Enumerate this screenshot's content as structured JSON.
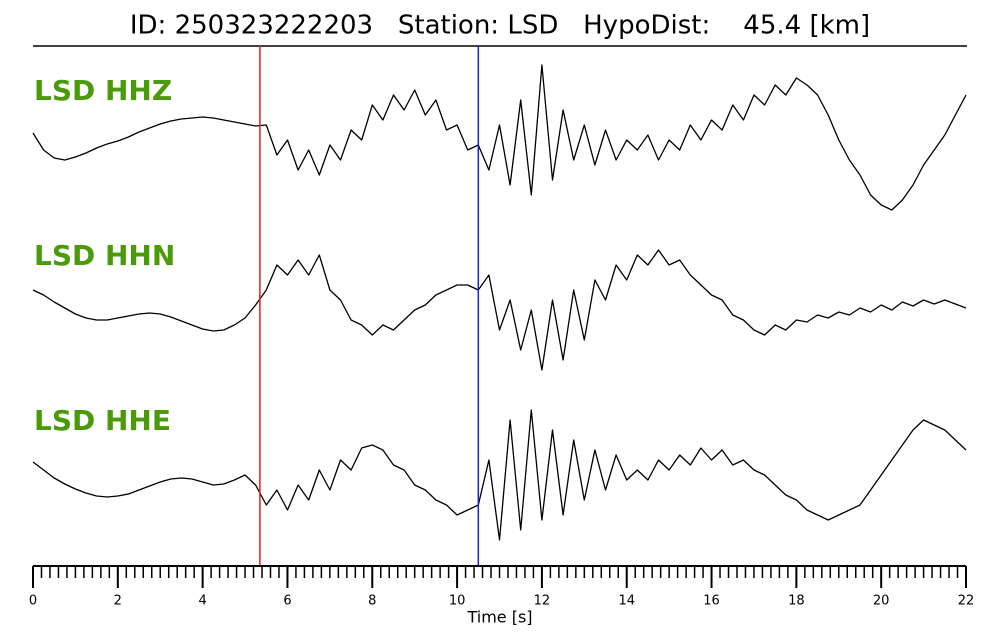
{
  "chart_data": {
    "type": "line",
    "title": "ID: 250323222203   Station: LSD   HypoDist:    45.4 [km]",
    "xlabel": "Time [s]",
    "xlim": [
      0,
      22
    ],
    "xticks": [
      0,
      2,
      4,
      6,
      8,
      10,
      12,
      14,
      16,
      18,
      20,
      22
    ],
    "xminor_step": 0.2,
    "ylim": [
      -80,
      80
    ],
    "x": [
      0,
      0.25,
      0.5,
      0.75,
      1,
      1.25,
      1.5,
      1.75,
      2,
      2.25,
      2.5,
      2.75,
      3,
      3.25,
      3.5,
      3.75,
      4,
      4.25,
      4.5,
      4.75,
      5,
      5.25,
      5.5,
      5.75,
      6,
      6.25,
      6.5,
      6.75,
      7,
      7.25,
      7.5,
      7.75,
      8,
      8.25,
      8.5,
      8.75,
      9,
      9.25,
      9.5,
      9.75,
      10,
      10.25,
      10.5,
      10.75,
      11,
      11.25,
      11.5,
      11.75,
      12,
      12.25,
      12.5,
      12.75,
      13,
      13.25,
      13.5,
      13.75,
      14,
      14.25,
      14.5,
      14.75,
      15,
      15.25,
      15.5,
      15.75,
      16,
      16.25,
      16.5,
      16.75,
      17,
      17.25,
      17.5,
      17.75,
      18,
      18.25,
      18.5,
      18.75,
      19,
      19.25,
      19.5,
      19.75,
      20,
      20.25,
      20.5,
      20.75,
      21,
      21.25,
      21.5,
      21.75,
      22
    ],
    "series": [
      {
        "name": "LSD HHZ",
        "color": "#000000",
        "label_color": "#4a9a0a",
        "values": [
          17,
          0,
          -8,
          -10,
          -7,
          -3,
          2,
          6,
          9,
          13,
          18,
          22,
          26,
          29,
          31,
          32,
          33,
          32,
          30,
          28,
          26,
          24,
          25,
          -5,
          10,
          -20,
          0,
          -25,
          5,
          -10,
          20,
          10,
          45,
          30,
          55,
          40,
          60,
          35,
          50,
          20,
          25,
          0,
          5,
          -20,
          25,
          -35,
          50,
          -45,
          85,
          -30,
          40,
          -10,
          25,
          -15,
          20,
          -10,
          10,
          0,
          15,
          -10,
          10,
          0,
          25,
          10,
          30,
          20,
          45,
          30,
          55,
          45,
          65,
          55,
          72,
          65,
          55,
          35,
          10,
          -10,
          -25,
          -45,
          -55,
          -60,
          -50,
          -35,
          -15,
          0,
          15,
          35,
          55
        ]
      },
      {
        "name": "LSD HHN",
        "color": "#000000",
        "label_color": "#4a9a0a",
        "values": [
          25,
          20,
          13,
          7,
          1,
          -3,
          -5,
          -5,
          -3,
          -1,
          1,
          2,
          1,
          -2,
          -6,
          -10,
          -14,
          -16,
          -15,
          -10,
          -3,
          10,
          25,
          50,
          40,
          55,
          40,
          60,
          25,
          15,
          -5,
          -10,
          -20,
          -10,
          -15,
          -5,
          5,
          10,
          20,
          25,
          30,
          30,
          25,
          40,
          -15,
          15,
          -35,
          5,
          -55,
          15,
          -45,
          25,
          -25,
          35,
          15,
          50,
          35,
          60,
          50,
          65,
          50,
          55,
          40,
          30,
          20,
          15,
          0,
          -5,
          -15,
          -20,
          -10,
          -15,
          -5,
          -7,
          0,
          -3,
          3,
          0,
          7,
          3,
          10,
          5,
          13,
          9,
          15,
          11,
          15,
          11,
          7
        ]
      },
      {
        "name": "LSD HHE",
        "color": "#000000",
        "label_color": "#4a9a0a",
        "values": [
          18,
          10,
          2,
          -4,
          -9,
          -13,
          -16,
          -17,
          -16,
          -14,
          -10,
          -6,
          -2,
          1,
          2,
          1,
          -2,
          -5,
          -4,
          0,
          5,
          -5,
          -25,
          -10,
          -30,
          -5,
          -20,
          10,
          -10,
          20,
          10,
          32,
          35,
          30,
          15,
          10,
          -5,
          -10,
          -20,
          -25,
          -35,
          -30,
          -25,
          20,
          -60,
          60,
          -50,
          70,
          -40,
          50,
          -35,
          40,
          -20,
          30,
          -10,
          25,
          0,
          10,
          0,
          20,
          10,
          25,
          15,
          32,
          20,
          30,
          15,
          20,
          10,
          5,
          -5,
          -15,
          -20,
          -30,
          -35,
          -40,
          -35,
          -30,
          -25,
          -10,
          5,
          20,
          35,
          50,
          60,
          55,
          50,
          40,
          30
        ]
      }
    ],
    "picks": [
      {
        "x": 5.35,
        "color": "#e02020"
      },
      {
        "x": 10.5,
        "color": "#2020d0"
      }
    ]
  }
}
